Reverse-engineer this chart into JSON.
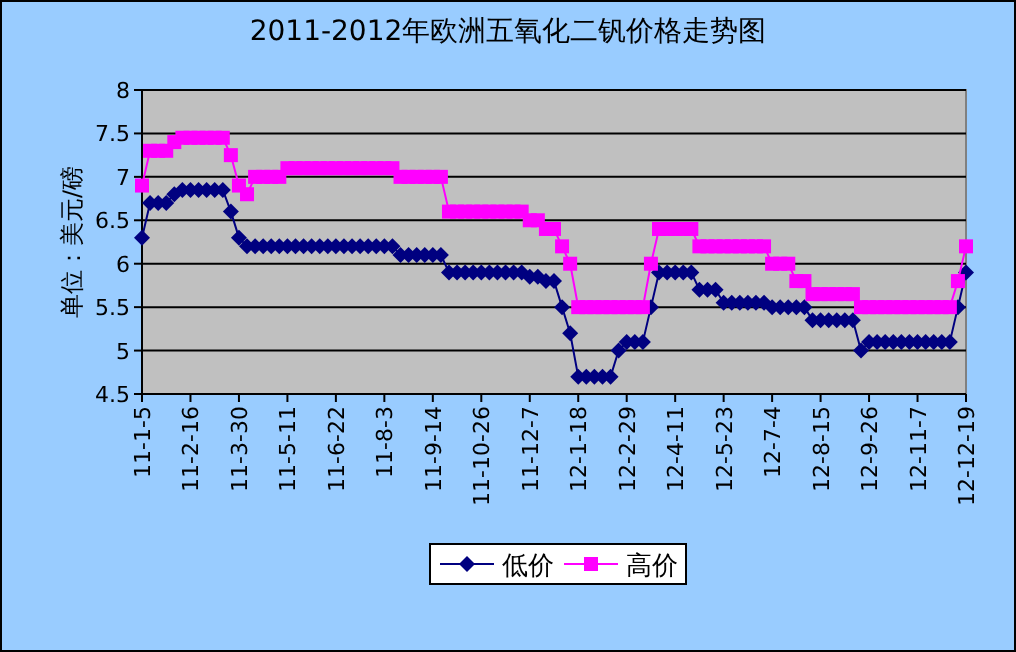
{
  "chart_data": {
    "type": "line",
    "title": "2011-2012年欧洲五氧化二钒价格走势图",
    "ylabel": "单位：美元/磅",
    "categories": [
      "11-1-5",
      null,
      null,
      null,
      null,
      null,
      "11-2-16",
      null,
      null,
      null,
      null,
      null,
      "11-3-30",
      null,
      null,
      null,
      null,
      null,
      "11-5-11",
      null,
      null,
      null,
      null,
      null,
      "11-6-22",
      null,
      null,
      null,
      null,
      null,
      "11-8-3",
      null,
      null,
      null,
      null,
      null,
      "11-9-14",
      null,
      null,
      null,
      null,
      null,
      "11-10-26",
      null,
      null,
      null,
      null,
      null,
      "11-12-7",
      null,
      null,
      null,
      null,
      null,
      "12-1-18",
      null,
      null,
      null,
      null,
      null,
      "12-2-29",
      null,
      null,
      null,
      null,
      null,
      "12-4-11",
      null,
      null,
      null,
      null,
      null,
      "12-5-23",
      null,
      null,
      null,
      null,
      null,
      "12-7-4",
      null,
      null,
      null,
      null,
      null,
      "12-8-15",
      null,
      null,
      null,
      null,
      null,
      "12-9-26",
      null,
      null,
      null,
      null,
      null,
      "12-11-7",
      null,
      null,
      null,
      null,
      null,
      "12-12-19"
    ],
    "series": [
      {
        "name": "低价",
        "color": "#000080",
        "marker": "diamond",
        "values": [
          6.3,
          6.7,
          6.7,
          6.7,
          6.8,
          6.85,
          6.85,
          6.85,
          6.85,
          6.85,
          6.85,
          6.6,
          6.3,
          6.2,
          6.2,
          6.2,
          6.2,
          6.2,
          6.2,
          6.2,
          6.2,
          6.2,
          6.2,
          6.2,
          6.2,
          6.2,
          6.2,
          6.2,
          6.2,
          6.2,
          6.2,
          6.2,
          6.1,
          6.1,
          6.1,
          6.1,
          6.1,
          6.1,
          5.9,
          5.9,
          5.9,
          5.9,
          5.9,
          5.9,
          5.9,
          5.9,
          5.9,
          5.9,
          5.85,
          5.85,
          5.8,
          5.8,
          5.5,
          5.2,
          4.7,
          4.7,
          4.7,
          4.7,
          4.7,
          5.0,
          5.1,
          5.1,
          5.1,
          5.5,
          5.9,
          5.9,
          5.9,
          5.9,
          5.9,
          5.7,
          5.7,
          5.7,
          5.55,
          5.55,
          5.55,
          5.55,
          5.55,
          5.55,
          5.5,
          5.5,
          5.5,
          5.5,
          5.5,
          5.35,
          5.35,
          5.35,
          5.35,
          5.35,
          5.35,
          5.0,
          5.1,
          5.1,
          5.1,
          5.1,
          5.1,
          5.1,
          5.1,
          5.1,
          5.1,
          5.1,
          5.1,
          5.5,
          5.9
        ]
      },
      {
        "name": "高价",
        "color": "#ff00ff",
        "marker": "square",
        "values": [
          6.9,
          7.3,
          7.3,
          7.3,
          7.4,
          7.45,
          7.45,
          7.45,
          7.45,
          7.45,
          7.45,
          7.25,
          6.9,
          6.8,
          7.0,
          7.0,
          7.0,
          7.0,
          7.1,
          7.1,
          7.1,
          7.1,
          7.1,
          7.1,
          7.1,
          7.1,
          7.1,
          7.1,
          7.1,
          7.1,
          7.1,
          7.1,
          7.0,
          7.0,
          7.0,
          7.0,
          7.0,
          7.0,
          6.6,
          6.6,
          6.6,
          6.6,
          6.6,
          6.6,
          6.6,
          6.6,
          6.6,
          6.6,
          6.5,
          6.5,
          6.4,
          6.4,
          6.2,
          6.0,
          5.5,
          5.5,
          5.5,
          5.5,
          5.5,
          5.5,
          5.5,
          5.5,
          5.5,
          6.0,
          6.4,
          6.4,
          6.4,
          6.4,
          6.4,
          6.2,
          6.2,
          6.2,
          6.2,
          6.2,
          6.2,
          6.2,
          6.2,
          6.2,
          6.0,
          6.0,
          6.0,
          5.8,
          5.8,
          5.65,
          5.65,
          5.65,
          5.65,
          5.65,
          5.65,
          5.5,
          5.5,
          5.5,
          5.5,
          5.5,
          5.5,
          5.5,
          5.5,
          5.5,
          5.5,
          5.5,
          5.5,
          5.8,
          6.2
        ]
      }
    ],
    "ylim": [
      4.5,
      8
    ],
    "yticks": [
      4.5,
      5,
      5.5,
      6,
      6.5,
      7,
      7.5,
      8
    ],
    "grid": "y",
    "legend": "bottom"
  }
}
